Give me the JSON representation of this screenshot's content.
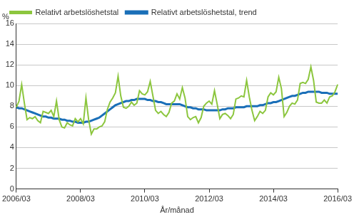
{
  "chart_data": {
    "type": "line",
    "ylabel": "%",
    "xlabel": "År/månad",
    "categories": [
      "2006/03",
      null,
      null,
      null,
      null,
      null,
      null,
      null,
      null,
      null,
      null,
      null,
      null,
      null,
      null,
      null,
      null,
      null,
      null,
      null,
      null,
      null,
      null,
      null,
      "2008/03",
      null,
      null,
      null,
      null,
      null,
      null,
      null,
      null,
      null,
      null,
      null,
      null,
      null,
      null,
      null,
      null,
      null,
      null,
      null,
      null,
      null,
      null,
      null,
      "2010/03",
      null,
      null,
      null,
      null,
      null,
      null,
      null,
      null,
      null,
      null,
      null,
      null,
      null,
      null,
      null,
      null,
      null,
      null,
      null,
      null,
      null,
      null,
      null,
      "2012/03",
      null,
      null,
      null,
      null,
      null,
      null,
      null,
      null,
      null,
      null,
      null,
      null,
      null,
      null,
      null,
      null,
      null,
      null,
      null,
      null,
      null,
      null,
      null,
      "2014/03",
      null,
      null,
      null,
      null,
      null,
      null,
      null,
      null,
      null,
      null,
      null,
      null,
      null,
      null,
      null,
      null,
      null,
      null,
      null,
      null,
      null,
      null,
      null,
      "2016/03"
    ],
    "series": [
      {
        "name": "Relativt arbetslöshetstal",
        "color": "#8cc63e",
        "values": [
          7.9,
          8.5,
          10.1,
          8.3,
          6.7,
          6.9,
          6.8,
          7.0,
          6.6,
          6.4,
          7.5,
          7.4,
          7.3,
          7.6,
          7.0,
          8.5,
          6.7,
          6.0,
          5.9,
          6.4,
          6.2,
          6.1,
          6.8,
          6.5,
          6.8,
          6.3,
          8.8,
          6.7,
          5.3,
          5.8,
          5.8,
          6.0,
          6.1,
          6.5,
          7.7,
          8.4,
          8.8,
          9.3,
          10.9,
          9.0,
          7.9,
          7.8,
          8.0,
          8.4,
          8.1,
          8.3,
          9.5,
          9.2,
          9.1,
          9.4,
          10.4,
          9.0,
          7.6,
          7.3,
          7.5,
          7.2,
          7.0,
          7.4,
          8.3,
          8.5,
          9.2,
          8.7,
          9.8,
          8.8,
          7.0,
          6.7,
          6.9,
          7.0,
          6.4,
          6.9,
          8.0,
          8.3,
          8.5,
          8.2,
          9.5,
          8.2,
          6.8,
          7.2,
          7.3,
          7.1,
          6.8,
          7.2,
          8.7,
          8.8,
          9.0,
          8.9,
          10.5,
          8.9,
          7.6,
          6.6,
          7.0,
          7.5,
          7.3,
          7.6,
          8.9,
          9.3,
          9.1,
          9.4,
          10.8,
          9.7,
          7.0,
          7.4,
          8.0,
          8.3,
          8.2,
          8.6,
          10.2,
          10.3,
          10.2,
          10.6,
          11.8,
          10.5,
          8.4,
          8.3,
          8.3,
          8.6,
          8.3,
          8.9,
          9.0,
          9.4,
          10.1
        ]
      },
      {
        "name": "Relativt arbetslöshetstal, trend",
        "color": "#1a6fb8",
        "values": [
          7.9,
          7.8,
          7.8,
          7.7,
          7.6,
          7.5,
          7.4,
          7.3,
          7.2,
          7.1,
          7.0,
          7.0,
          6.9,
          6.9,
          6.8,
          6.8,
          6.8,
          6.7,
          6.7,
          6.6,
          6.6,
          6.5,
          6.5,
          6.4,
          6.4,
          6.4,
          6.5,
          6.5,
          6.6,
          6.7,
          6.8,
          6.9,
          7.1,
          7.3,
          7.5,
          7.7,
          7.9,
          8.1,
          8.2,
          8.3,
          8.4,
          8.5,
          8.5,
          8.6,
          8.6,
          8.7,
          8.7,
          8.7,
          8.7,
          8.6,
          8.6,
          8.5,
          8.5,
          8.4,
          8.4,
          8.3,
          8.2,
          8.2,
          8.2,
          8.2,
          8.2,
          8.2,
          8.1,
          8.0,
          7.9,
          7.9,
          7.8,
          7.8,
          7.7,
          7.7,
          7.7,
          7.6,
          7.6,
          7.6,
          7.6,
          7.6,
          7.6,
          7.7,
          7.7,
          7.8,
          7.8,
          7.8,
          7.9,
          7.9,
          7.9,
          7.9,
          8.0,
          8.0,
          8.0,
          8.0,
          8.0,
          8.1,
          8.1,
          8.2,
          8.3,
          8.3,
          8.4,
          8.4,
          8.5,
          8.6,
          8.7,
          8.8,
          8.9,
          9.0,
          9.0,
          9.1,
          9.2,
          9.3,
          9.3,
          9.4,
          9.4,
          9.4,
          9.4,
          9.4,
          9.3,
          9.3,
          9.3,
          9.2,
          9.2,
          9.2,
          9.2
        ]
      }
    ],
    "ylim": [
      0,
      16
    ],
    "yticks": [
      0,
      2,
      4,
      6,
      8,
      10,
      12,
      14,
      16
    ],
    "grid": true,
    "legend": "top"
  }
}
